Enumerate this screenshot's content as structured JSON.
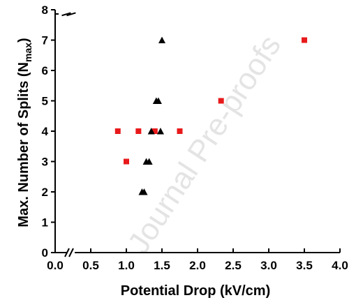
{
  "chart_data": {
    "type": "scatter",
    "xlabel": "Potential Drop (kV/cm)",
    "ylabel_main": "Max. Number of Splits (N",
    "ylabel_sub": "max",
    "ylabel_close": ")",
    "watermark": "Journal Pre-proofs",
    "xlim": [
      0,
      4.0
    ],
    "ylim": [
      0,
      8
    ],
    "x_ticks": [
      "0.0",
      "0.5",
      "1.0",
      "1.5",
      "2.0",
      "2.5",
      "3.0",
      "3.5",
      "4.0"
    ],
    "y_ticks": [
      "0",
      "1",
      "2",
      "3",
      "4",
      "5",
      "6",
      "7",
      "8"
    ],
    "axis_breaks": [
      "x",
      "y"
    ],
    "grid": false,
    "series": [
      {
        "marker": "square",
        "color": "#e8191b",
        "points": [
          {
            "x": 0.88,
            "y": 4
          },
          {
            "x": 1.0,
            "y": 3
          },
          {
            "x": 1.17,
            "y": 4
          },
          {
            "x": 1.4,
            "y": 4
          },
          {
            "x": 1.75,
            "y": 4
          },
          {
            "x": 2.33,
            "y": 5
          },
          {
            "x": 3.5,
            "y": 7
          }
        ]
      },
      {
        "marker": "triangle",
        "color": "#000000",
        "points": [
          {
            "x": 1.22,
            "y": 2
          },
          {
            "x": 1.25,
            "y": 2
          },
          {
            "x": 1.28,
            "y": 3
          },
          {
            "x": 1.32,
            "y": 3
          },
          {
            "x": 1.35,
            "y": 4
          },
          {
            "x": 1.42,
            "y": 5
          },
          {
            "x": 1.45,
            "y": 5
          },
          {
            "x": 1.48,
            "y": 4
          },
          {
            "x": 1.5,
            "y": 7
          }
        ]
      }
    ]
  }
}
